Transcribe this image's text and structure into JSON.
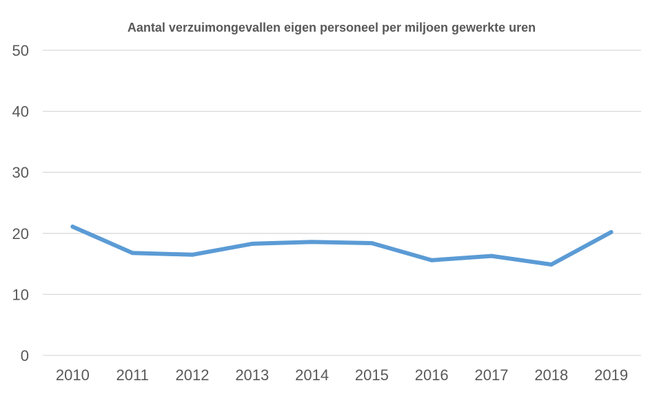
{
  "chart_data": {
    "type": "line",
    "title": "Aantal verzuimongevallen eigen personeel per miljoen gewerkte uren",
    "xlabel": "",
    "ylabel": "",
    "categories": [
      "2010",
      "2011",
      "2012",
      "2013",
      "2014",
      "2015",
      "2016",
      "2017",
      "2018",
      "2019"
    ],
    "series": [
      {
        "values": [
          21.1,
          16.8,
          16.5,
          18.3,
          18.6,
          18.4,
          15.6,
          16.3,
          14.9,
          20.2
        ],
        "color": "#5b9bd5"
      }
    ],
    "ylim": [
      0,
      50
    ],
    "yticks": [
      "0",
      "10",
      "20",
      "30",
      "40",
      "50"
    ],
    "grid": true,
    "legend": "none"
  }
}
